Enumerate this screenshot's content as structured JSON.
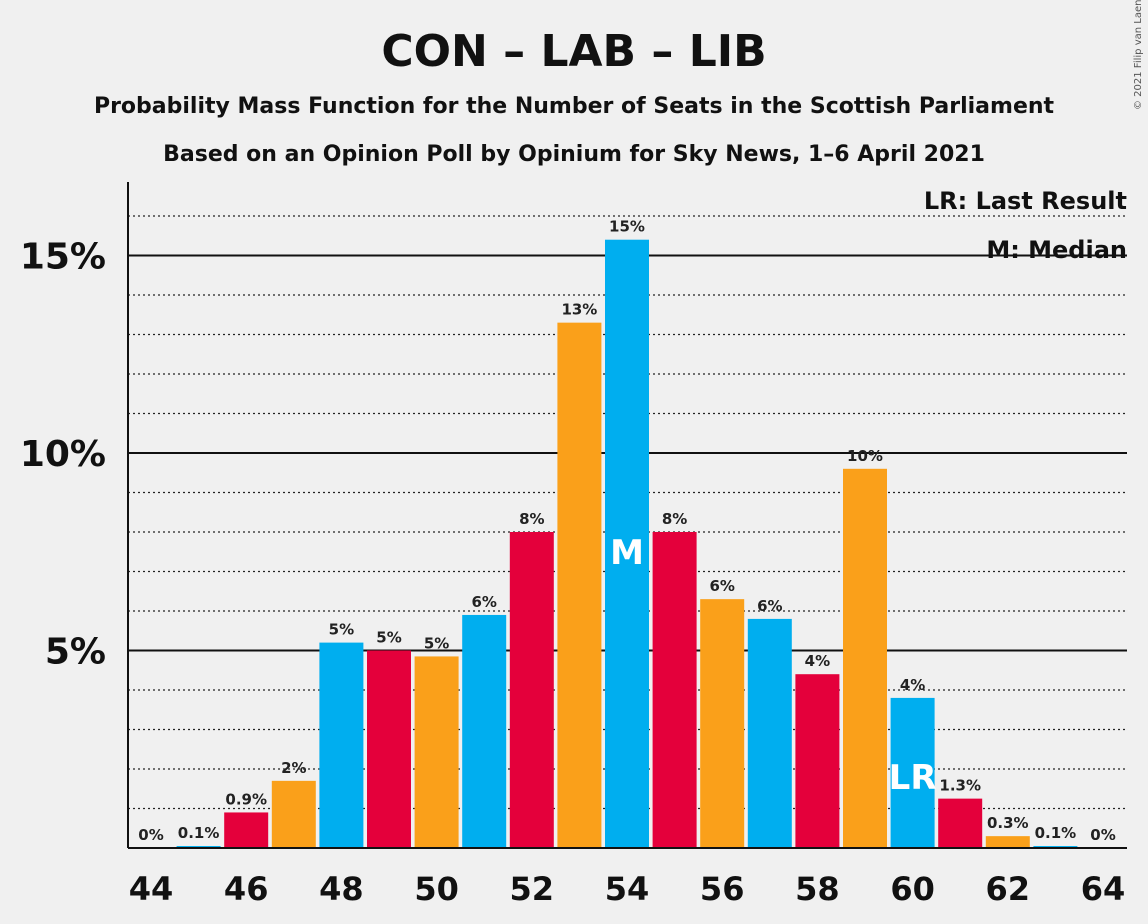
{
  "chart_data": {
    "type": "bar",
    "title": "CON – LAB – LIB",
    "subtitle": "Probability Mass Function for the Number of Seats in the Scottish Parliament",
    "subtitle2": "Based on an Opinion Poll by Opinium for Sky News, 1–6 April 2021",
    "credit": "© 2021 Filip van Laenen",
    "legend": {
      "lr": "LR: Last Result",
      "m": "M: Median",
      "placement": "top-right"
    },
    "xlabel": "",
    "ylabel": "",
    "ylim": [
      0,
      17
    ],
    "x_ticks": [
      "44",
      "46",
      "48",
      "50",
      "52",
      "54",
      "56",
      "58",
      "60",
      "62",
      "64"
    ],
    "y_ticks": [
      {
        "value": 5,
        "label": "5%"
      },
      {
        "value": 10,
        "label": "10%"
      },
      {
        "value": 15,
        "label": "15%"
      }
    ],
    "grid": "dotted minor every 1%, solid major every 5%",
    "colors": {
      "blue": "#00aeef",
      "red": "#e4003b",
      "orange": "#faa01a"
    },
    "categories": [
      44,
      45,
      46,
      47,
      48,
      49,
      50,
      51,
      52,
      53,
      54,
      55,
      56,
      57,
      58,
      59,
      60,
      61,
      62,
      63,
      64
    ],
    "values": [
      0,
      0.05,
      0.9,
      1.7,
      5.2,
      5.0,
      4.85,
      5.9,
      8.0,
      13.3,
      15.4,
      8.0,
      6.3,
      5.8,
      4.4,
      9.6,
      3.8,
      1.25,
      0.3,
      0.05,
      0
    ],
    "labels": [
      "0%",
      "0.1%",
      "0.9%",
      "2%",
      "5%",
      "5%",
      "5%",
      "6%",
      "8%",
      "13%",
      "15%",
      "8%",
      "6%",
      "6%",
      "4%",
      "10%",
      "4%",
      "1.3%",
      "0.3%",
      "0.1%",
      "0%"
    ],
    "bar_colors": [
      "blue",
      "blue",
      "red",
      "orange",
      "blue",
      "red",
      "orange",
      "blue",
      "red",
      "orange",
      "blue",
      "red",
      "orange",
      "blue",
      "red",
      "orange",
      "blue",
      "red",
      "orange",
      "blue",
      "red"
    ],
    "median": {
      "seat": 54,
      "label": "M"
    },
    "last_result": {
      "seat": 60,
      "label": "LR"
    }
  }
}
